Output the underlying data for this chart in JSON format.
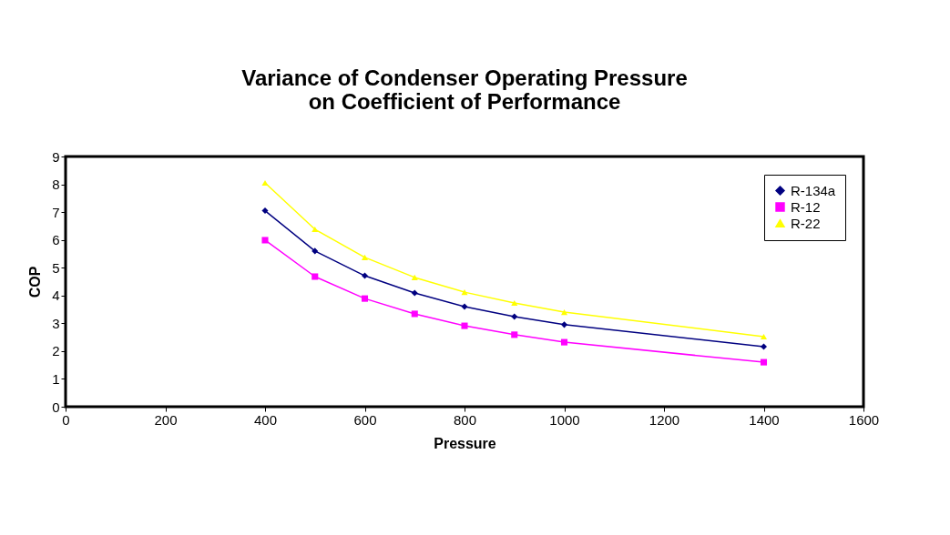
{
  "chart_data": {
    "type": "line",
    "title": [
      "Variance of Condenser Operating Pressure",
      "on Coefficient of Performance"
    ],
    "xlabel": "Pressure",
    "ylabel": "COP",
    "x": [
      400,
      500,
      600,
      700,
      800,
      900,
      1000,
      1400
    ],
    "series": [
      {
        "name": "R-134a",
        "color": "#000080",
        "marker": "diamond",
        "values": [
          7.05,
          5.6,
          4.71,
          4.09,
          3.6,
          3.24,
          2.95,
          2.16
        ]
      },
      {
        "name": "R-12",
        "color": "#ff00ff",
        "marker": "square",
        "values": [
          5.99,
          4.68,
          3.89,
          3.34,
          2.91,
          2.59,
          2.32,
          1.6
        ]
      },
      {
        "name": "R-22",
        "color": "#ffff00",
        "marker": "triangle",
        "values": [
          8.05,
          6.38,
          5.37,
          4.65,
          4.12,
          3.73,
          3.4,
          2.52
        ]
      }
    ],
    "xlim": [
      0,
      1600
    ],
    "xticks": [
      0,
      200,
      400,
      600,
      800,
      1000,
      1200,
      1400,
      1600
    ],
    "ylim": [
      0,
      9
    ],
    "yticks": [
      0,
      1,
      2,
      3,
      4,
      5,
      6,
      7,
      8,
      9
    ],
    "grid": false,
    "legend": "top right",
    "line_style": "solid"
  }
}
